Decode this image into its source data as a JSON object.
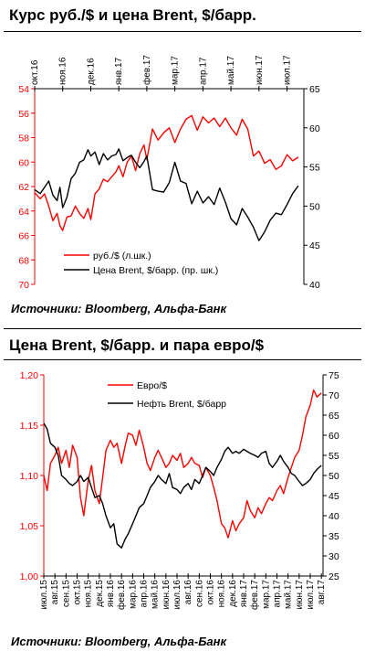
{
  "chart1": {
    "title": "Курс руб./$ и цена Brent, $/барр.",
    "source": "Источники: Bloomberg, Альфа-Банк"
  },
  "chart2": {
    "title": "Цена Brent, $/барр. и пара евро/$",
    "source": "Источники: Bloomberg, Альфа-Банк"
  },
  "chart_data": [
    {
      "type": "line",
      "title": "Курс руб./$ и цена Brent, $/барр.",
      "x_tick_labels": [
        "окт.16",
        "ноя.16",
        "дек.16",
        "янв.17",
        "фев.17",
        "мар.17",
        "апр.17",
        "май.17",
        "июн.17",
        "июл.17"
      ],
      "y_left": {
        "ticks": [
          54,
          56,
          58,
          60,
          62,
          64,
          66,
          68,
          70
        ],
        "range": [
          54,
          70
        ],
        "inverted": true,
        "color": "#ff0000"
      },
      "y_right": {
        "ticks": [
          40,
          45,
          50,
          55,
          60,
          65
        ],
        "range": [
          40,
          65
        ]
      },
      "legend_position": "bottom-left",
      "series": [
        {
          "name": "руб./$ (л.шк.)",
          "axis": "left",
          "color": "#ff0000",
          "x": [
            0,
            0.2,
            0.35,
            0.5,
            0.65,
            0.8,
            0.9,
            1.0,
            1.15,
            1.3,
            1.45,
            1.6,
            1.75,
            1.9,
            2.0,
            2.15,
            2.3,
            2.45,
            2.6,
            2.75,
            2.9,
            3.0,
            3.15,
            3.3,
            3.45,
            3.6,
            3.75,
            3.9,
            4.0,
            4.2,
            4.4,
            4.6,
            4.8,
            5.0,
            5.2,
            5.4,
            5.6,
            5.8,
            6.0,
            6.2,
            6.4,
            6.6,
            6.8,
            7.0,
            7.2,
            7.4,
            7.6,
            7.8,
            8.0,
            8.2,
            8.4,
            8.6,
            8.8,
            9.0,
            9.2,
            9.4
          ],
          "values": [
            62.5,
            63.0,
            62.6,
            63.6,
            64.8,
            64.2,
            65.2,
            65.6,
            64.5,
            64.4,
            63.6,
            64.2,
            64.6,
            63.8,
            64.7,
            62.6,
            62.2,
            61.4,
            61.6,
            61.2,
            60.8,
            60.3,
            61.2,
            60.0,
            59.5,
            60.7,
            59.3,
            58.6,
            59.8,
            57.3,
            58.2,
            57.6,
            57.2,
            58.4,
            57.3,
            56.5,
            56.2,
            57.4,
            56.3,
            56.8,
            56.4,
            57.1,
            56.4,
            57.2,
            57.8,
            56.5,
            57.3,
            59.5,
            59.1,
            60.1,
            59.8,
            60.6,
            60.3,
            59.4,
            59.9,
            59.6
          ]
        },
        {
          "name": "Цена Brent, $/барр. (пр. шк.)",
          "axis": "right",
          "color": "#000000",
          "x": [
            0,
            0.2,
            0.35,
            0.5,
            0.65,
            0.8,
            0.9,
            1.0,
            1.15,
            1.3,
            1.45,
            1.6,
            1.75,
            1.9,
            2.0,
            2.15,
            2.3,
            2.45,
            2.6,
            2.75,
            2.9,
            3.0,
            3.15,
            3.3,
            3.45,
            3.6,
            3.75,
            3.9,
            4.0,
            4.2,
            4.4,
            4.6,
            4.8,
            5.0,
            5.2,
            5.4,
            5.6,
            5.8,
            6.0,
            6.2,
            6.4,
            6.6,
            6.8,
            7.0,
            7.2,
            7.4,
            7.6,
            7.8,
            8.0,
            8.2,
            8.4,
            8.6,
            8.8,
            9.0,
            9.2,
            9.4
          ],
          "values": [
            52.1,
            51.6,
            52.4,
            53.2,
            51.4,
            50.7,
            52.4,
            49.8,
            51.1,
            53.5,
            54.2,
            55.6,
            55.9,
            57.2,
            56.4,
            56.9,
            55.3,
            56.7,
            55.9,
            56.4,
            56.6,
            57.3,
            55.8,
            56.2,
            56.5,
            55.6,
            54.9,
            55.7,
            56.4,
            52.1,
            51.9,
            51.8,
            53.0,
            55.6,
            53.2,
            52.9,
            50.3,
            51.9,
            50.4,
            51.2,
            50.2,
            52.3,
            50.5,
            48.4,
            47.6,
            49.7,
            48.6,
            47.3,
            45.6,
            46.7,
            48.2,
            49.1,
            48.9,
            50.2,
            51.6,
            52.6
          ]
        }
      ]
    },
    {
      "type": "line",
      "title": "Цена Brent, $/барр. и пара евро/$",
      "x_tick_labels": [
        "июл.15",
        "авг.15",
        "сен.15",
        "окт.15",
        "ноя.15",
        "дек.15",
        "янв.16",
        "фев.16",
        "мар.16",
        "апр.16",
        "май.16",
        "июн.16",
        "июл.16",
        "авг.16",
        "сен.16",
        "окт.16",
        "ноя.16",
        "дек.16",
        "янв.17",
        "фев.17",
        "мар.17",
        "апр.17",
        "май.17",
        "июн.17",
        "июл.17",
        "авг.17"
      ],
      "y_left": {
        "ticks": [
          "1,00",
          "1,05",
          "1,10",
          "1,15",
          "1,20"
        ],
        "range": [
          1.0,
          1.2
        ],
        "color": "#ff0000"
      },
      "y_right": {
        "ticks": [
          25,
          30,
          35,
          40,
          45,
          50,
          55,
          60,
          65,
          70,
          75
        ],
        "range": [
          25,
          75
        ]
      },
      "legend_position": "top-left",
      "series": [
        {
          "name": "Евро/$",
          "axis": "left",
          "color": "#ff0000",
          "x": [
            0,
            0.3,
            0.6,
            1.0,
            1.3,
            1.6,
            2.0,
            2.3,
            2.6,
            3.0,
            3.3,
            3.6,
            4.0,
            4.3,
            4.6,
            5.0,
            5.3,
            5.6,
            6.0,
            6.3,
            6.6,
            7.0,
            7.3,
            7.6,
            8.0,
            8.3,
            8.6,
            9.0,
            9.3,
            9.6,
            10.0,
            10.3,
            10.6,
            11.0,
            11.3,
            11.6,
            12.0,
            12.3,
            12.6,
            13.0,
            13.3,
            13.6,
            14.0,
            14.3,
            14.6,
            15.0,
            15.3,
            15.6,
            16.0,
            16.3,
            16.6,
            17.0,
            17.3,
            17.6,
            18.0,
            18.3,
            18.6,
            19.0,
            19.3,
            19.6,
            20.0,
            20.3,
            20.6,
            21.0,
            21.3,
            21.6,
            22.0,
            22.3,
            22.6,
            23.0,
            23.3,
            23.6,
            24.0,
            24.3,
            24.6,
            25.0
          ],
          "values": [
            1.1,
            1.085,
            1.112,
            1.12,
            1.128,
            1.112,
            1.125,
            1.108,
            1.13,
            1.118,
            1.078,
            1.06,
            1.095,
            1.11,
            1.085,
            1.072,
            1.098,
            1.125,
            1.135,
            1.128,
            1.132,
            1.112,
            1.128,
            1.142,
            1.14,
            1.13,
            1.145,
            1.128,
            1.112,
            1.105,
            1.118,
            1.125,
            1.118,
            1.108,
            1.112,
            1.12,
            1.115,
            1.122,
            1.108,
            1.112,
            1.118,
            1.112,
            1.11,
            1.098,
            1.108,
            1.1,
            1.088,
            1.075,
            1.052,
            1.048,
            1.038,
            1.055,
            1.045,
            1.052,
            1.058,
            1.075,
            1.065,
            1.058,
            1.068,
            1.062,
            1.072,
            1.078,
            1.075,
            1.085,
            1.09,
            1.082,
            1.098,
            1.108,
            1.118,
            1.125,
            1.14,
            1.158,
            1.17,
            1.185,
            1.178,
            1.182
          ]
        },
        {
          "name": "Нефть Brent, $/барр",
          "axis": "right",
          "color": "#000000",
          "x": [
            0,
            0.3,
            0.6,
            1.0,
            1.3,
            1.6,
            2.0,
            2.3,
            2.6,
            3.0,
            3.3,
            3.6,
            4.0,
            4.3,
            4.6,
            5.0,
            5.3,
            5.6,
            6.0,
            6.3,
            6.6,
            7.0,
            7.3,
            7.6,
            8.0,
            8.3,
            8.6,
            9.0,
            9.3,
            9.6,
            10.0,
            10.3,
            10.6,
            11.0,
            11.3,
            11.6,
            12.0,
            12.3,
            12.6,
            13.0,
            13.3,
            13.6,
            14.0,
            14.3,
            14.6,
            15.0,
            15.3,
            15.6,
            16.0,
            16.3,
            16.6,
            17.0,
            17.3,
            17.6,
            18.0,
            18.3,
            18.6,
            19.0,
            19.3,
            19.6,
            20.0,
            20.3,
            20.6,
            21.0,
            21.3,
            21.6,
            22.0,
            22.3,
            22.6,
            23.0,
            23.3,
            23.6,
            24.0,
            24.3,
            24.6,
            25.0
          ],
          "values": [
            63.0,
            61.5,
            58.0,
            57.0,
            55.0,
            50.0,
            49.0,
            48.0,
            47.5,
            48.5,
            50.0,
            48.5,
            49.5,
            47.0,
            44.5,
            45.0,
            43.0,
            40.0,
            37.0,
            38.0,
            33.0,
            32.0,
            34.0,
            35.5,
            38.0,
            40.0,
            42.0,
            43.0,
            45.0,
            47.0,
            48.5,
            50.0,
            49.0,
            48.0,
            50.5,
            47.0,
            46.5,
            45.5,
            47.0,
            48.0,
            46.5,
            49.0,
            48.0,
            50.0,
            52.0,
            51.0,
            50.0,
            52.0,
            54.0,
            56.0,
            57.0,
            55.5,
            56.0,
            55.5,
            56.5,
            56.0,
            55.5,
            55.0,
            54.5,
            55.5,
            56.0,
            53.0,
            52.0,
            53.5,
            55.0,
            53.5,
            52.0,
            50.5,
            50.0,
            48.5,
            47.5,
            48.0,
            49.0,
            50.5,
            51.5,
            52.5
          ]
        }
      ]
    }
  ]
}
